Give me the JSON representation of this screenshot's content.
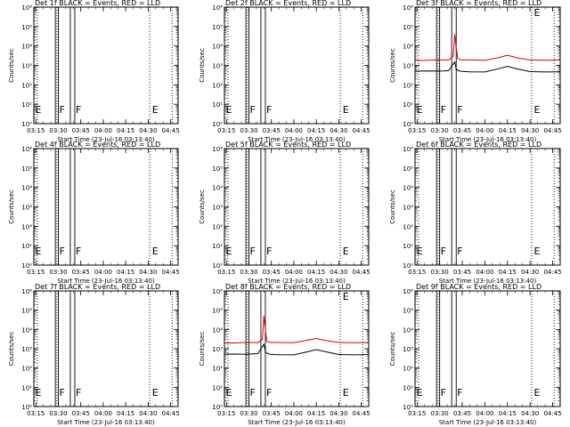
{
  "figure": {
    "xlabel": "Start Time (23-Jul-16 03:13:40)",
    "ylabel": "Counts/sec",
    "x_tick_labels": [
      "03:15",
      "03:30",
      "03:45",
      "04:00",
      "04:15",
      "04:30",
      "04:45"
    ],
    "y_tick_labels": [
      "10⁰",
      "10¹",
      "10²",
      "10³",
      "10⁴",
      "10⁵",
      "10⁶"
    ],
    "colors": {
      "events": "#000000",
      "lld": "#d40000"
    }
  },
  "chart_data": [
    {
      "type": "line",
      "title": "Det 1f BLACK = Events, RED = LLD",
      "ylabel": "Counts/sec",
      "xlabel": "Start Time (23-Jul-16 03:13:40)",
      "xlim": [
        "03:13:40",
        "04:50"
      ],
      "ylim": [
        1,
        1000000
      ],
      "y_scale": "log",
      "x_ticks": [
        "03:15",
        "03:30",
        "03:45",
        "04:00",
        "04:15",
        "04:30",
        "04:45"
      ],
      "solid_markers": [
        "03:28",
        "03:30",
        "03:38",
        "03:41"
      ],
      "dotted_markers": [
        "03:16",
        "03:29",
        "04:31",
        "04:46"
      ],
      "letters": [
        {
          "text": "E",
          "x": "03:14"
        },
        {
          "text": "F",
          "x": "03:30"
        },
        {
          "text": "F",
          "x": "03:41"
        },
        {
          "text": "E",
          "x": "04:32"
        }
      ],
      "series": []
    },
    {
      "type": "line",
      "title": "Det 2f BLACK = Events, RED = LLD",
      "ylabel": "Counts/sec",
      "xlabel": "Start Time (23-Jul-16 03:13:40)",
      "xlim": [
        "03:13:40",
        "04:50"
      ],
      "ylim": [
        1,
        1000000
      ],
      "y_scale": "log",
      "x_ticks": [
        "03:15",
        "03:30",
        "03:45",
        "04:00",
        "04:15",
        "04:30",
        "04:45"
      ],
      "solid_markers": [
        "03:28",
        "03:30",
        "03:38",
        "03:41"
      ],
      "dotted_markers": [
        "03:16",
        "03:29",
        "04:31",
        "04:46"
      ],
      "letters": [
        {
          "text": "E",
          "x": "03:14"
        },
        {
          "text": "F",
          "x": "03:30"
        },
        {
          "text": "F",
          "x": "03:41"
        },
        {
          "text": "E",
          "x": "04:32"
        }
      ],
      "series": []
    },
    {
      "type": "line",
      "title": "Det 3f BLACK = Events, RED = LLD",
      "ylabel": "Counts/sec",
      "xlabel": "Start Time (23-Jul-16 03:13:40)",
      "xlim": [
        "03:13:40",
        "04:50"
      ],
      "ylim": [
        1,
        1000000
      ],
      "y_scale": "log",
      "x_ticks": [
        "03:15",
        "03:30",
        "03:45",
        "04:00",
        "04:15",
        "04:30",
        "04:45"
      ],
      "solid_markers": [
        "03:28",
        "03:30",
        "03:38",
        "03:41"
      ],
      "dotted_markers": [
        "03:16",
        "03:29",
        "04:31",
        "04:46"
      ],
      "letters": [
        {
          "text": "E",
          "x": "03:14"
        },
        {
          "text": "F",
          "x": "03:30"
        },
        {
          "text": "F",
          "x": "03:41"
        },
        {
          "text": "E",
          "x": "04:32"
        }
      ],
      "series": [
        {
          "color": "#d40000",
          "x": [
            "03:13:40",
            "03:20",
            "03:28",
            "03:33",
            "03:36",
            "03:39",
            "03:40",
            "03:41",
            "03:42",
            "03:44",
            "03:50",
            "04:00",
            "04:08",
            "04:15",
            "04:22",
            "04:30",
            "04:40",
            "04:50"
          ],
          "y": [
            1800,
            1800,
            1900,
            1900,
            1900,
            3000,
            40000,
            8000,
            2300,
            1900,
            1900,
            1850,
            2400,
            3300,
            2400,
            1900,
            1850,
            1900
          ]
        },
        {
          "color": "#000000",
          "x": [
            "03:13:40",
            "03:20",
            "03:28",
            "03:33",
            "03:36",
            "03:39",
            "03:40",
            "03:41",
            "03:42",
            "03:44",
            "03:50",
            "04:00",
            "04:08",
            "04:15",
            "04:22",
            "04:30",
            "04:40",
            "04:50"
          ],
          "y": [
            500,
            520,
            510,
            520,
            540,
            1200,
            1500,
            650,
            560,
            500,
            470,
            460,
            640,
            880,
            650,
            480,
            460,
            470
          ]
        }
      ]
    },
    {
      "type": "line",
      "title": "Det 4f BLACK = Events, RED = LLD",
      "ylabel": "Counts/sec",
      "xlabel": "Start Time (23-Jul-16 03:13:40)",
      "xlim": [
        "03:13:40",
        "04:50"
      ],
      "ylim": [
        1,
        1000000
      ],
      "y_scale": "log",
      "x_ticks": [
        "03:15",
        "03:30",
        "03:45",
        "04:00",
        "04:15",
        "04:30",
        "04:45"
      ],
      "solid_markers": [
        "03:28",
        "03:30",
        "03:38",
        "03:41"
      ],
      "dotted_markers": [
        "03:16",
        "03:29",
        "04:31",
        "04:46"
      ],
      "letters": [
        {
          "text": "E",
          "x": "03:14"
        },
        {
          "text": "F",
          "x": "03:30"
        },
        {
          "text": "F",
          "x": "03:41"
        },
        {
          "text": "E",
          "x": "04:32"
        }
      ],
      "series": []
    },
    {
      "type": "line",
      "title": "Det 5f BLACK = Events, RED = LLD",
      "ylabel": "Counts/sec",
      "xlabel": "Start Time (23-Jul-16 03:13:40)",
      "xlim": [
        "03:13:40",
        "04:50"
      ],
      "ylim": [
        1,
        1000000
      ],
      "y_scale": "log",
      "x_ticks": [
        "03:15",
        "03:30",
        "03:45",
        "04:00",
        "04:15",
        "04:30",
        "04:45"
      ],
      "solid_markers": [
        "03:28",
        "03:30",
        "03:38",
        "03:41"
      ],
      "dotted_markers": [
        "03:16",
        "03:29",
        "04:31",
        "04:46"
      ],
      "letters": [
        {
          "text": "E",
          "x": "03:14"
        },
        {
          "text": "F",
          "x": "03:30"
        },
        {
          "text": "F",
          "x": "03:41"
        },
        {
          "text": "E",
          "x": "04:32"
        }
      ],
      "series": []
    },
    {
      "type": "line",
      "title": "Det 6f BLACK = Events, RED = LLD",
      "ylabel": "Counts/sec",
      "xlabel": "Start Time (23-Jul-16 03:13:40)",
      "xlim": [
        "03:13:40",
        "04:50"
      ],
      "ylim": [
        1,
        1000000
      ],
      "y_scale": "log",
      "x_ticks": [
        "03:15",
        "03:30",
        "03:45",
        "04:00",
        "04:15",
        "04:30",
        "04:45"
      ],
      "solid_markers": [
        "03:28",
        "03:30",
        "03:38",
        "03:41"
      ],
      "dotted_markers": [
        "03:16",
        "03:29",
        "04:31",
        "04:46"
      ],
      "letters": [
        {
          "text": "E",
          "x": "03:14"
        },
        {
          "text": "F",
          "x": "03:30"
        },
        {
          "text": "F",
          "x": "03:41"
        },
        {
          "text": "E",
          "x": "04:32"
        }
      ],
      "series": []
    },
    {
      "type": "line",
      "title": "Det 7f BLACK = Events, RED = LLD",
      "ylabel": "Counts/sec",
      "xlabel": "Start Time (23-Jul-16 03:13:40)",
      "xlim": [
        "03:13:40",
        "04:50"
      ],
      "ylim": [
        1,
        1000000
      ],
      "y_scale": "log",
      "x_ticks": [
        "03:15",
        "03:30",
        "03:45",
        "04:00",
        "04:15",
        "04:30",
        "04:45"
      ],
      "solid_markers": [
        "03:28",
        "03:30",
        "03:38",
        "03:41"
      ],
      "dotted_markers": [
        "03:16",
        "03:29",
        "04:31",
        "04:46"
      ],
      "letters": [
        {
          "text": "E",
          "x": "03:14"
        },
        {
          "text": "F",
          "x": "03:30"
        },
        {
          "text": "F",
          "x": "03:41"
        },
        {
          "text": "E",
          "x": "04:32"
        }
      ],
      "series": []
    },
    {
      "type": "line",
      "title": "Det 8f BLACK = Events, RED = LLD",
      "ylabel": "Counts/sec",
      "xlabel": "Start Time (23-Jul-16 03:13:40)",
      "xlim": [
        "03:13:40",
        "04:50"
      ],
      "ylim": [
        1,
        1000000
      ],
      "y_scale": "log",
      "x_ticks": [
        "03:15",
        "03:30",
        "03:45",
        "04:00",
        "04:15",
        "04:30",
        "04:45"
      ],
      "solid_markers": [
        "03:28",
        "03:30",
        "03:38",
        "03:41"
      ],
      "dotted_markers": [
        "03:16",
        "03:29",
        "04:31",
        "04:46"
      ],
      "letters": [
        {
          "text": "E",
          "x": "03:14"
        },
        {
          "text": "F",
          "x": "03:30"
        },
        {
          "text": "F",
          "x": "03:41"
        },
        {
          "text": "E",
          "x": "04:32"
        }
      ],
      "series": [
        {
          "color": "#d40000",
          "x": [
            "03:13:40",
            "03:20",
            "03:28",
            "03:33",
            "03:36",
            "03:39",
            "03:40",
            "03:41",
            "03:42",
            "03:44",
            "03:50",
            "04:00",
            "04:08",
            "04:15",
            "04:22",
            "04:30",
            "04:40",
            "04:50"
          ],
          "y": [
            2000,
            2000,
            2100,
            2100,
            2050,
            3000,
            50000,
            9000,
            2500,
            2100,
            2100,
            2050,
            2700,
            3400,
            2600,
            2100,
            2050,
            2100
          ]
        },
        {
          "color": "#000000",
          "x": [
            "03:13:40",
            "03:20",
            "03:28",
            "03:33",
            "03:36",
            "03:39",
            "03:40",
            "03:41",
            "03:42",
            "03:44",
            "03:50",
            "04:00",
            "04:08",
            "04:15",
            "04:22",
            "04:30",
            "04:40",
            "04:50"
          ],
          "y": [
            520,
            530,
            520,
            540,
            560,
            1300,
            1700,
            700,
            580,
            520,
            490,
            480,
            660,
            900,
            680,
            500,
            480,
            500
          ]
        }
      ]
    },
    {
      "type": "line",
      "title": "Det 9f BLACK = Events, RED = LLD",
      "ylabel": "Counts/sec",
      "xlabel": "Start Time (23-Jul-16 03:13:40)",
      "xlim": [
        "03:13:40",
        "04:50"
      ],
      "ylim": [
        1,
        1000000
      ],
      "y_scale": "log",
      "x_ticks": [
        "03:15",
        "03:30",
        "03:45",
        "04:00",
        "04:15",
        "04:30",
        "04:45"
      ],
      "solid_markers": [
        "03:28",
        "03:30",
        "03:38",
        "03:41"
      ],
      "dotted_markers": [
        "03:16",
        "03:29",
        "04:31",
        "04:46"
      ],
      "letters": [
        {
          "text": "E",
          "x": "03:14"
        },
        {
          "text": "F",
          "x": "03:30"
        },
        {
          "text": "F",
          "x": "03:41"
        },
        {
          "text": "E",
          "x": "04:32"
        }
      ],
      "series": []
    }
  ]
}
